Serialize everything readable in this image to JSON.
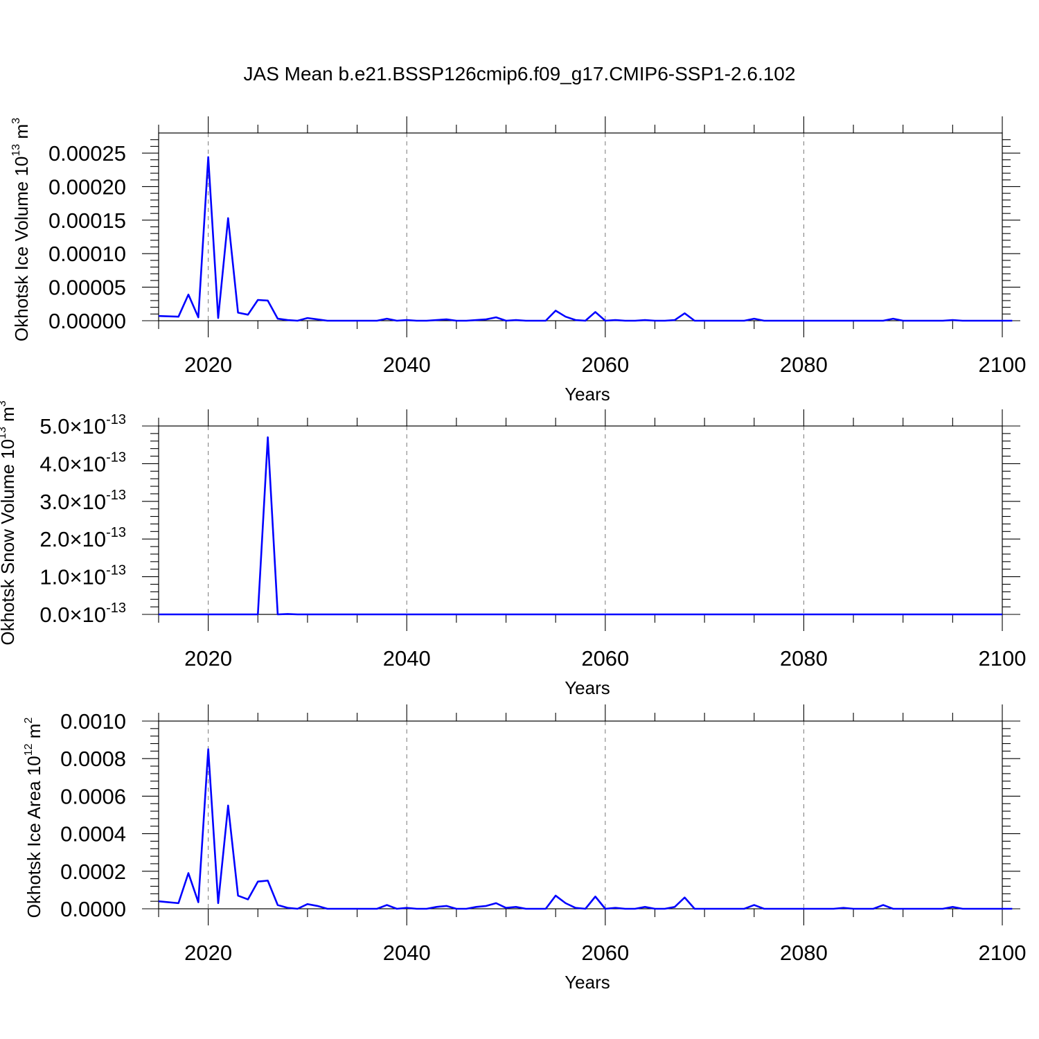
{
  "figure": {
    "title": "JAS Mean b.e21.BSSP126cmip6.f09_g17.CMIP6-SSP1-2.6.102"
  },
  "chart_data": [
    {
      "type": "line",
      "title": "",
      "xlabel": "Years",
      "ylabel": "Okhotsk Ice Volume 10",
      "ylabel_exp": "13",
      "ylabel_unit": " m",
      "ylabel_unit_exp": "3",
      "xlim": [
        2015,
        2100
      ],
      "ylim": [
        0,
        0.00028
      ],
      "xticks": [
        2020,
        2040,
        2060,
        2080,
        2100
      ],
      "yticks": [
        0,
        5e-05,
        0.0001,
        0.00015,
        0.0002,
        0.00025
      ],
      "ytick_labels": [
        "0.00000",
        "0.00005",
        "0.00010",
        "0.00015",
        "0.00020",
        "0.00025"
      ],
      "ytick_exp": "",
      "grid": "x-dashed",
      "x_start": 2015,
      "series": [
        {
          "color": "#0000ff",
          "values": [
            7e-06,
            6.5e-06,
            6e-06,
            3.9e-05,
            5e-06,
            0.000244,
            4e-06,
            0.000153,
            1.2e-05,
            9e-06,
            3.1e-05,
            3e-05,
            3e-06,
            1e-06,
            0,
            4e-06,
            2e-06,
            0,
            0,
            0,
            0,
            0,
            0,
            3e-06,
            0,
            1e-06,
            0,
            0,
            1e-06,
            2e-06,
            0,
            0,
            1e-06,
            2e-06,
            5e-06,
            0,
            1e-06,
            0,
            0,
            0,
            1.5e-05,
            6e-06,
            1e-06,
            0,
            1.3e-05,
            0,
            1e-06,
            0,
            0,
            1e-06,
            0,
            0,
            1e-06,
            1.1e-05,
            0,
            0,
            0,
            0,
            0,
            0,
            3e-06,
            0,
            0,
            0,
            0,
            0,
            0,
            0,
            0,
            0,
            0,
            0,
            0,
            0,
            3e-06,
            0,
            0,
            0,
            0,
            0,
            1e-06,
            0,
            0,
            0,
            0,
            0,
            0
          ]
        }
      ]
    },
    {
      "type": "line",
      "title": "",
      "xlabel": "Years",
      "ylabel": "Okhotsk Snow Volume 10",
      "ylabel_exp": "13",
      "ylabel_unit": " m",
      "ylabel_unit_exp": "3",
      "xlim": [
        2015,
        2100
      ],
      "ylim": [
        0,
        5e-13
      ],
      "xticks": [
        2020,
        2040,
        2060,
        2080,
        2100
      ],
      "yticks": [
        0,
        1e-13,
        2e-13,
        3e-13,
        4e-13,
        5e-13
      ],
      "ytick_labels": [
        "0.0×10",
        "1.0×10",
        "2.0×10",
        "3.0×10",
        "4.0×10",
        "5.0×10"
      ],
      "ytick_exp": "-13",
      "grid": "x-dashed",
      "x_start": 2015,
      "series": [
        {
          "color": "#0000ff",
          "values": [
            0,
            0,
            0,
            0,
            0,
            0,
            0,
            0,
            0,
            0,
            0,
            4.7e-13,
            0,
            1e-15,
            0,
            0,
            0,
            0,
            0,
            0,
            0,
            0,
            0,
            0,
            0,
            0,
            0,
            0,
            0,
            0,
            0,
            0,
            0,
            0,
            0,
            0,
            0,
            0,
            0,
            0,
            0,
            0,
            0,
            0,
            0,
            0,
            0,
            0,
            0,
            0,
            0,
            0,
            0,
            0,
            0,
            0,
            0,
            0,
            0,
            0,
            0,
            0,
            0,
            0,
            0,
            0,
            0,
            0,
            0,
            0,
            0,
            0,
            0,
            0,
            0,
            0,
            0,
            0,
            0,
            0,
            0,
            0,
            0,
            0,
            0,
            0
          ]
        }
      ]
    },
    {
      "type": "line",
      "title": "",
      "xlabel": "Years",
      "ylabel": "Okhotsk Ice Area 10",
      "ylabel_exp": "12",
      "ylabel_unit": " m",
      "ylabel_unit_exp": "2",
      "xlim": [
        2015,
        2100
      ],
      "ylim": [
        0,
        0.001
      ],
      "xticks": [
        2020,
        2040,
        2060,
        2080,
        2100
      ],
      "yticks": [
        0,
        0.0002,
        0.0004,
        0.0006,
        0.0008,
        0.001
      ],
      "ytick_labels": [
        "0.0000",
        "0.0002",
        "0.0004",
        "0.0006",
        "0.0008",
        "0.0010"
      ],
      "ytick_exp": "",
      "grid": "x-dashed",
      "x_start": 2015,
      "series": [
        {
          "color": "#0000ff",
          "values": [
            4e-05,
            3.5e-05,
            3e-05,
            0.00019,
            3.5e-05,
            0.00085,
            3e-05,
            0.00055,
            7e-05,
            5e-05,
            0.000145,
            0.00015,
            2e-05,
            5e-06,
            0,
            2.5e-05,
            1.5e-05,
            0,
            0,
            0,
            0,
            0,
            0,
            2e-05,
            0,
            5e-06,
            0,
            0,
            1e-05,
            1.5e-05,
            0,
            0,
            1e-05,
            1.5e-05,
            3e-05,
            5e-06,
            1e-05,
            0,
            0,
            0,
            7e-05,
            3e-05,
            5e-06,
            0,
            6.5e-05,
            0,
            5e-06,
            0,
            0,
            1e-05,
            0,
            0,
            1e-05,
            6e-05,
            0,
            0,
            0,
            0,
            0,
            0,
            2e-05,
            0,
            0,
            0,
            0,
            0,
            0,
            0,
            0,
            5e-06,
            0,
            0,
            0,
            2e-05,
            0,
            0,
            0,
            0,
            0,
            0,
            1e-05,
            0,
            0,
            0,
            0,
            0,
            0
          ]
        }
      ]
    }
  ]
}
